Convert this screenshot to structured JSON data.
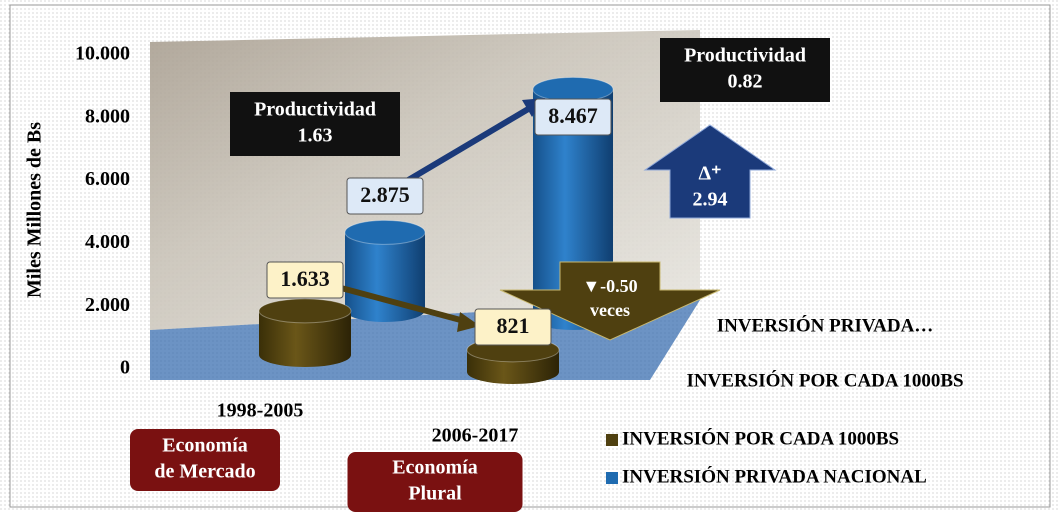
{
  "chart_data": {
    "type": "bar",
    "y_label": "Miles Millones de Bs",
    "categories": [
      "1998-2005",
      "2006-2017"
    ],
    "series": [
      {
        "name": "INVERSIÓN POR CADA 1000BS",
        "color": "#4f4010",
        "values": [
          1633,
          821
        ],
        "value_labels": [
          "1.633",
          "821"
        ]
      },
      {
        "name": "INVERSIÓN PRIVADA NACIONAL",
        "color": "#1f6bb0",
        "values": [
          2875,
          8467
        ],
        "value_labels": [
          "2.875",
          "8.467"
        ]
      }
    ],
    "depth_labels": [
      "INVERSIÓN PRIVADA…",
      "INVERSIÓN POR CADA 1000BS"
    ],
    "ylim": [
      0,
      10000
    ],
    "yticks": [
      {
        "value": 0,
        "label": "0"
      },
      {
        "value": 2000,
        "label": "2.000"
      },
      {
        "value": 4000,
        "label": "4.000"
      },
      {
        "value": 6000,
        "label": "6.000"
      },
      {
        "value": 8000,
        "label": "8.000"
      },
      {
        "value": 10000,
        "label": "10.000"
      }
    ],
    "annotations": [
      {
        "lines": [
          "Productividad",
          "1.63"
        ]
      },
      {
        "lines": [
          "Productividad",
          "0.82"
        ]
      },
      {
        "lines": [
          "Δ⁺",
          "2.94"
        ]
      },
      {
        "lines": [
          "▼-0.50",
          "veces"
        ]
      },
      {
        "lines": [
          "Economía",
          "de Mercado"
        ]
      },
      {
        "lines": [
          "Economía",
          "Plural"
        ]
      }
    ],
    "legend": "bottom-right"
  }
}
